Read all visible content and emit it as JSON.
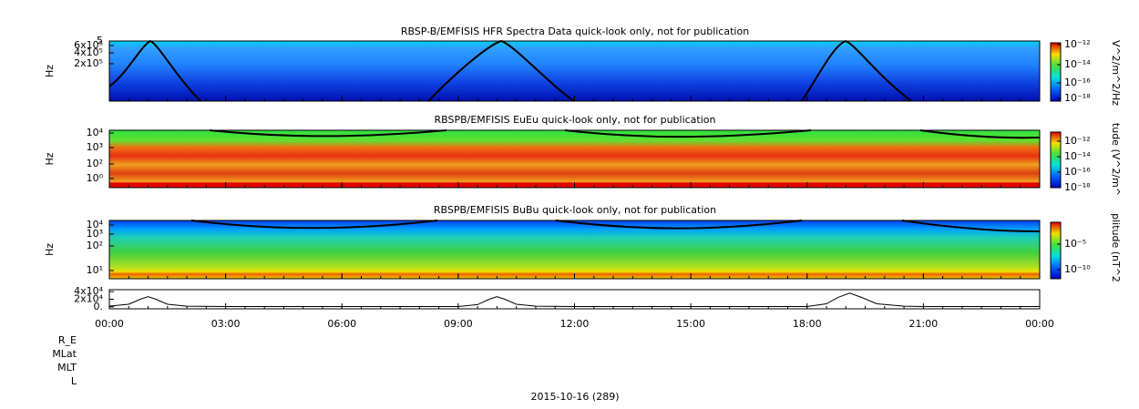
{
  "chart_data": {
    "type": "spectrogram-stack",
    "xlim": [
      0,
      24
    ],
    "xticks": [
      {
        "value": 0,
        "label": "00:00"
      },
      {
        "value": 3,
        "label": "03:00"
      },
      {
        "value": 6,
        "label": "06:00"
      },
      {
        "value": 9,
        "label": "09:00"
      },
      {
        "value": 12,
        "label": "12:00"
      },
      {
        "value": 15,
        "label": "15:00"
      },
      {
        "value": 18,
        "label": "18:00"
      },
      {
        "value": 21,
        "label": "21:00"
      },
      {
        "value": 24,
        "label": "00:00"
      }
    ],
    "panels": [
      {
        "title": "RBSP-B/EMFISIS  HFR Spectra Data quick-look only, not for publication",
        "ylabel": "Hz",
        "colorbar_label": "V^2/m^2/Hz",
        "yticks": [
          {
            "value": 5,
            "label": "5"
          },
          {
            "value": 600000,
            "label": "6x10⁵"
          },
          {
            "value": 400000,
            "label": "4x10⁵"
          },
          {
            "value": 200000,
            "label": "2x10⁵"
          }
        ],
        "cticks": [
          {
            "value": -12,
            "label": "10⁻¹²"
          },
          {
            "value": -14,
            "label": "10⁻¹⁴"
          },
          {
            "value": -16,
            "label": "10⁻¹⁶"
          },
          {
            "value": -18,
            "label": "10⁻¹⁸"
          }
        ]
      },
      {
        "title": "RBSPB/EMFISIS  EuEu quick-look only, not for publication",
        "ylabel": "Hz",
        "colorbar_label": "tude (V^2/m^",
        "yticks": [
          {
            "value": 4,
            "label": "10⁴"
          },
          {
            "value": 3,
            "label": "10³"
          },
          {
            "value": 2,
            "label": "10²"
          },
          {
            "value": 0,
            "label": "10⁰"
          }
        ],
        "cticks": [
          {
            "value": -12,
            "label": "10⁻¹²"
          },
          {
            "value": -14,
            "label": "10⁻¹⁴"
          },
          {
            "value": -16,
            "label": "10⁻¹⁶"
          },
          {
            "value": -18,
            "label": "10⁻¹⁸"
          }
        ]
      },
      {
        "title": "RBSPB/EMFISIS  BuBu quick-look only, not for publication",
        "ylabel": "Hz",
        "colorbar_label": "plitude (nT^2",
        "yticks": [
          {
            "value": 4,
            "label": "10⁴"
          },
          {
            "value": 3,
            "label": "10³"
          },
          {
            "value": 2,
            "label": "10²"
          },
          {
            "value": 1,
            "label": "10¹"
          }
        ],
        "cticks": [
          {
            "value": -5,
            "label": "10⁻⁵"
          },
          {
            "value": -10,
            "label": "10⁻¹⁰"
          }
        ]
      }
    ],
    "line_panel": {
      "ylim": [
        -5000,
        45000
      ],
      "yticks": [
        {
          "value": 40000,
          "label": "4x10⁴"
        },
        {
          "value": 20000,
          "label": "2x10⁴"
        },
        {
          "value": 0,
          "label": "0."
        }
      ],
      "x": [
        0,
        0.5,
        0.8,
        1.0,
        1.2,
        1.5,
        2,
        3,
        9,
        9.5,
        9.8,
        10,
        10.2,
        10.5,
        11,
        12,
        18,
        18.5,
        18.8,
        19.1,
        19.4,
        19.8,
        20.5,
        21,
        24
      ],
      "values": [
        2000,
        7000,
        20000,
        27000,
        20000,
        7000,
        2000,
        1000,
        1000,
        6000,
        20000,
        27000,
        20000,
        7000,
        2000,
        1000,
        1000,
        8000,
        25000,
        36000,
        25000,
        8000,
        2000,
        1000,
        1000
      ]
    },
    "footer_labels": [
      "R_E",
      "MLat",
      "MLT",
      "L"
    ],
    "date": "2015-10-16 (289)"
  }
}
